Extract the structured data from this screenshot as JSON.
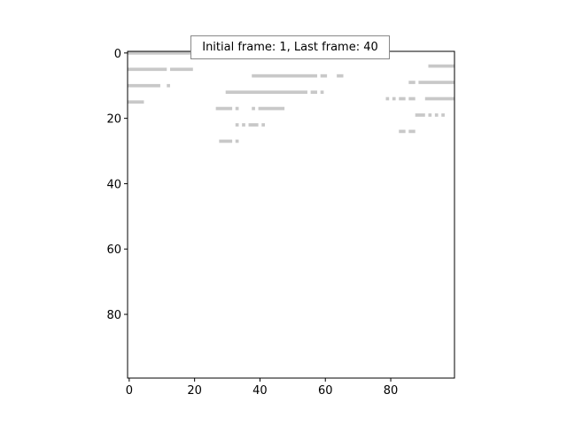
{
  "chart_data": {
    "type": "heatmap",
    "title": "",
    "xlabel": "",
    "ylabel": "",
    "xlim": [
      -0.5,
      99.5
    ],
    "ylim": [
      99.5,
      -0.5
    ],
    "x_ticks": [
      0,
      20,
      40,
      60,
      80
    ],
    "y_ticks": [
      0,
      20,
      40,
      60,
      80
    ],
    "grid": false,
    "colors": {
      "mark": "#c8c8c8",
      "background": "#ffffff",
      "axis": "#000000"
    },
    "annotation": "Initial frame: 1, Last frame: 40",
    "annotation_placement": "top-center",
    "mark_rows": [
      {
        "row": 0,
        "x_start": 0,
        "x_end": 24
      },
      {
        "row": 1,
        "x_start": 46,
        "x_end": 63
      },
      {
        "row": 1,
        "x_start": 65,
        "x_end": 65
      },
      {
        "row": 1,
        "x_start": 67,
        "x_end": 68
      },
      {
        "row": 4,
        "x_start": 92,
        "x_end": 99
      },
      {
        "row": 5,
        "x_start": 0,
        "x_end": 11
      },
      {
        "row": 5,
        "x_start": 13,
        "x_end": 19
      },
      {
        "row": 7,
        "x_start": 38,
        "x_end": 57
      },
      {
        "row": 7,
        "x_start": 59,
        "x_end": 60
      },
      {
        "row": 7,
        "x_start": 64,
        "x_end": 65
      },
      {
        "row": 9,
        "x_start": 86,
        "x_end": 87
      },
      {
        "row": 9,
        "x_start": 89,
        "x_end": 99
      },
      {
        "row": 10,
        "x_start": 0,
        "x_end": 9
      },
      {
        "row": 10,
        "x_start": 12,
        "x_end": 12
      },
      {
        "row": 12,
        "x_start": 30,
        "x_end": 54
      },
      {
        "row": 12,
        "x_start": 56,
        "x_end": 57
      },
      {
        "row": 12,
        "x_start": 59,
        "x_end": 59
      },
      {
        "row": 14,
        "x_start": 79,
        "x_end": 79
      },
      {
        "row": 14,
        "x_start": 81,
        "x_end": 81
      },
      {
        "row": 14,
        "x_start": 83,
        "x_end": 84
      },
      {
        "row": 14,
        "x_start": 86,
        "x_end": 87
      },
      {
        "row": 14,
        "x_start": 91,
        "x_end": 99
      },
      {
        "row": 15,
        "x_start": 0,
        "x_end": 4
      },
      {
        "row": 17,
        "x_start": 27,
        "x_end": 31
      },
      {
        "row": 17,
        "x_start": 33,
        "x_end": 33
      },
      {
        "row": 17,
        "x_start": 38,
        "x_end": 38
      },
      {
        "row": 17,
        "x_start": 40,
        "x_end": 47
      },
      {
        "row": 19,
        "x_start": 88,
        "x_end": 90
      },
      {
        "row": 19,
        "x_start": 92,
        "x_end": 92
      },
      {
        "row": 19,
        "x_start": 94,
        "x_end": 94
      },
      {
        "row": 19,
        "x_start": 96,
        "x_end": 96
      },
      {
        "row": 22,
        "x_start": 33,
        "x_end": 33
      },
      {
        "row": 22,
        "x_start": 35,
        "x_end": 35
      },
      {
        "row": 22,
        "x_start": 37,
        "x_end": 39
      },
      {
        "row": 22,
        "x_start": 41,
        "x_end": 41
      },
      {
        "row": 24,
        "x_start": 83,
        "x_end": 84
      },
      {
        "row": 24,
        "x_start": 86,
        "x_end": 87
      },
      {
        "row": 27,
        "x_start": 28,
        "x_end": 31
      },
      {
        "row": 27,
        "x_start": 33,
        "x_end": 33
      }
    ]
  }
}
